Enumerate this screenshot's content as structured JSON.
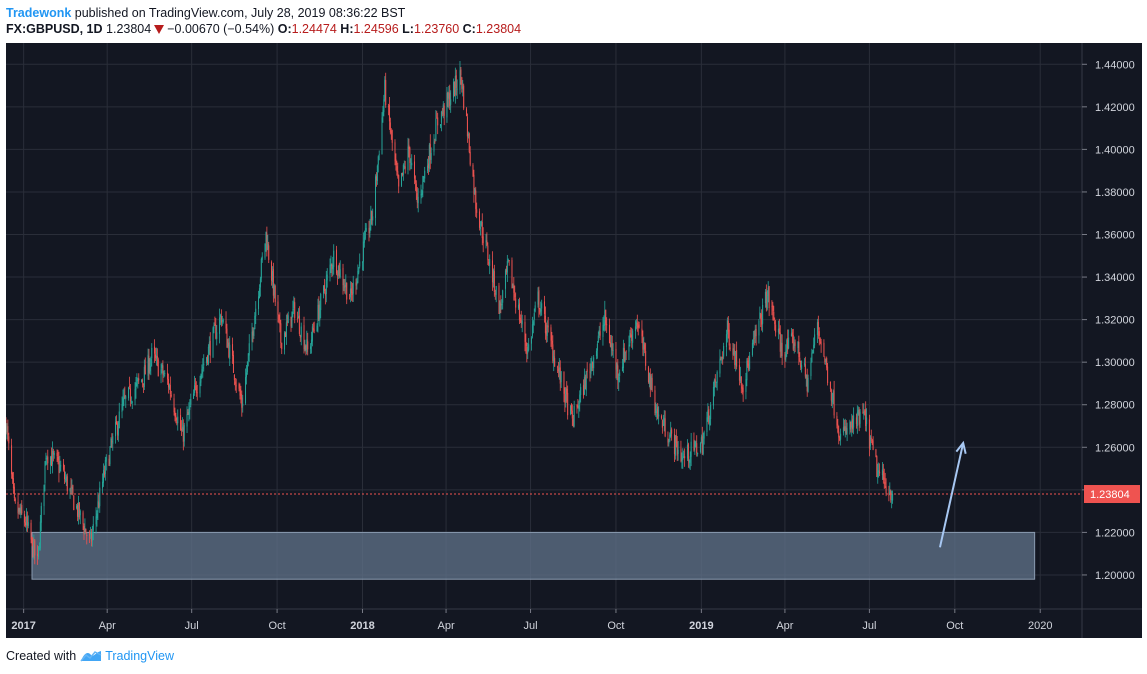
{
  "header": {
    "publisher": "Tradewonk",
    "published_text": " published on TradingView.com, July 28, 2019 08:36:22 BST",
    "symbol": "FX:GBPUSD, 1D",
    "last": "1.23804",
    "change": "−0.00670 (−0.54%)",
    "o_label": "O:",
    "o_value": "1.24474",
    "h_label": "H:",
    "h_value": "1.24596",
    "l_label": "L:",
    "l_value": "1.23760",
    "c_label": "C:",
    "c_value": "1.23804",
    "direction_icon": "triangle-down-icon"
  },
  "footer": {
    "created_with": "Created with",
    "brand": "TradingView",
    "logo_icon": "tradingview-logo-icon"
  },
  "colors": {
    "background": "#131722",
    "grid": "#2a2e39",
    "up": "#26a69a",
    "down": "#ef5350",
    "text": "#d1d4dc",
    "zone": "#5d7087",
    "arrow": "#a7c7f2",
    "price_label": "#ef5350"
  },
  "chart_data": {
    "type": "candlestick",
    "symbol": "FX:GBPUSD",
    "interval": "1D",
    "x_range": [
      "2016-12-13",
      "2020-02-15"
    ],
    "ylim": [
      1.184,
      1.45
    ],
    "y_ticks": [
      "1.44000",
      "1.42000",
      "1.40000",
      "1.38000",
      "1.36000",
      "1.34000",
      "1.32000",
      "1.30000",
      "1.28000",
      "1.26000",
      "1.24000",
      "1.22000",
      "1.20000"
    ],
    "x_ticks": [
      {
        "label": "2017",
        "date": "2017-01-01",
        "bold": true
      },
      {
        "label": "Apr",
        "date": "2017-04-01"
      },
      {
        "label": "Jul",
        "date": "2017-07-01"
      },
      {
        "label": "Oct",
        "date": "2017-10-01"
      },
      {
        "label": "2018",
        "date": "2018-01-01",
        "bold": true
      },
      {
        "label": "Apr",
        "date": "2018-04-01"
      },
      {
        "label": "Jul",
        "date": "2018-07-01"
      },
      {
        "label": "Oct",
        "date": "2018-10-01"
      },
      {
        "label": "2019",
        "date": "2019-01-01",
        "bold": true
      },
      {
        "label": "Apr",
        "date": "2019-04-01"
      },
      {
        "label": "Jul",
        "date": "2019-07-01"
      },
      {
        "label": "Oct",
        "date": "2019-10-01"
      },
      {
        "label": "2020",
        "date": "2020-01-01"
      }
    ],
    "close_path": [
      [
        "2016-12-13",
        1.272
      ],
      [
        "2016-12-22",
        1.232
      ],
      [
        "2017-01-03",
        1.225
      ],
      [
        "2017-01-16",
        1.205
      ],
      [
        "2017-01-25",
        1.258
      ],
      [
        "2017-02-10",
        1.25
      ],
      [
        "2017-03-14",
        1.215
      ],
      [
        "2017-03-30",
        1.25
      ],
      [
        "2017-04-18",
        1.28
      ],
      [
        "2017-05-10",
        1.293
      ],
      [
        "2017-05-19",
        1.303
      ],
      [
        "2017-06-06",
        1.29
      ],
      [
        "2017-06-21",
        1.265
      ],
      [
        "2017-07-10",
        1.295
      ],
      [
        "2017-08-02",
        1.322
      ],
      [
        "2017-08-24",
        1.28
      ],
      [
        "2017-09-19",
        1.36
      ],
      [
        "2017-10-05",
        1.31
      ],
      [
        "2017-10-20",
        1.325
      ],
      [
        "2017-11-03",
        1.305
      ],
      [
        "2017-12-01",
        1.35
      ],
      [
        "2017-12-19",
        1.33
      ],
      [
        "2018-01-12",
        1.37
      ],
      [
        "2018-01-25",
        1.428
      ],
      [
        "2018-02-09",
        1.38
      ],
      [
        "2018-02-20",
        1.4
      ],
      [
        "2018-03-01",
        1.375
      ],
      [
        "2018-03-22",
        1.412
      ],
      [
        "2018-04-17",
        1.435
      ],
      [
        "2018-05-03",
        1.375
      ],
      [
        "2018-05-29",
        1.325
      ],
      [
        "2018-06-07",
        1.345
      ],
      [
        "2018-06-28",
        1.305
      ],
      [
        "2018-07-09",
        1.33
      ],
      [
        "2018-08-15",
        1.272
      ],
      [
        "2018-09-19",
        1.32
      ],
      [
        "2018-10-03",
        1.295
      ],
      [
        "2018-10-23",
        1.32
      ],
      [
        "2018-11-15",
        1.275
      ],
      [
        "2018-12-12",
        1.255
      ],
      [
        "2019-01-02",
        1.262
      ],
      [
        "2019-01-29",
        1.315
      ],
      [
        "2019-02-15",
        1.29
      ],
      [
        "2019-03-13",
        1.332
      ],
      [
        "2019-03-29",
        1.305
      ],
      [
        "2019-04-12",
        1.31
      ],
      [
        "2019-04-25",
        1.29
      ],
      [
        "2019-05-06",
        1.318
      ],
      [
        "2019-05-31",
        1.265
      ],
      [
        "2019-06-25",
        1.275
      ],
      [
        "2019-07-10",
        1.248
      ],
      [
        "2019-07-26",
        1.238
      ]
    ],
    "last_price": 1.23804,
    "last_price_label": "1.23804",
    "support_zone": {
      "from": "2017-01-10",
      "to": "2019-12-26",
      "low": 1.198,
      "high": 1.22
    },
    "arrow": {
      "from": [
        "2019-09-15",
        1.213
      ],
      "to": [
        "2019-10-10",
        1.262
      ]
    }
  }
}
